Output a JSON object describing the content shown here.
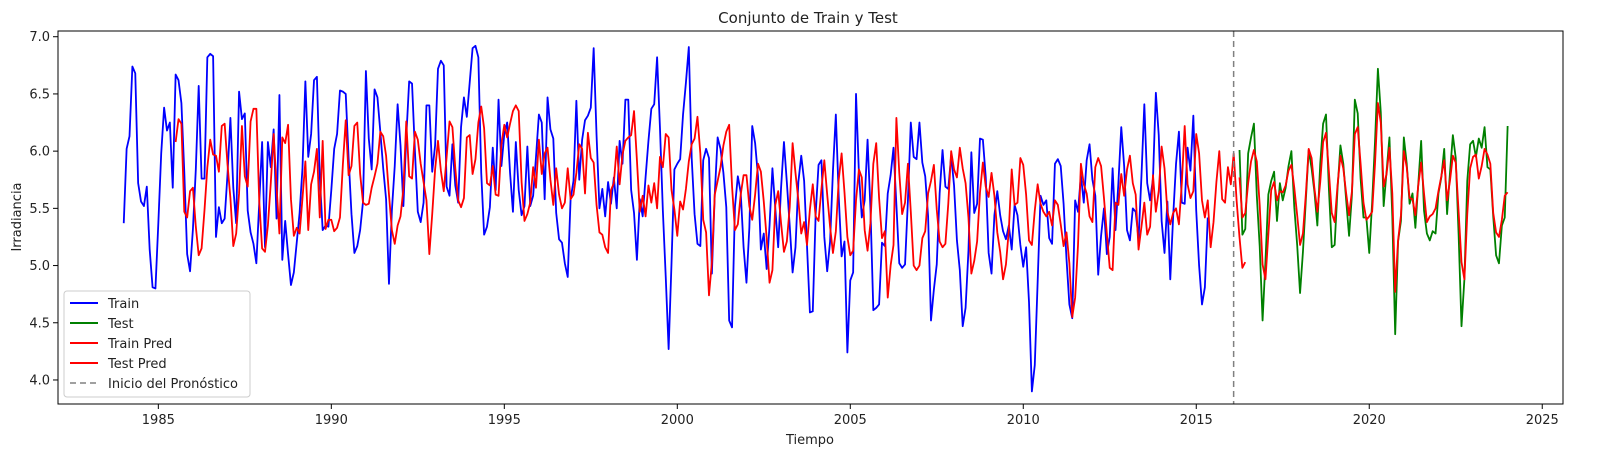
{
  "chart_data": {
    "type": "line",
    "title": "Conjunto de Train y Test",
    "xlabel": "Tiempo",
    "ylabel": "Irradiancia",
    "xlim": [
      1982.1,
      2025.6
    ],
    "ylim": [
      3.79,
      7.05
    ],
    "xticks": [
      1985,
      1990,
      1995,
      2000,
      2005,
      2010,
      2015,
      2020,
      2025
    ],
    "yticks": [
      4.0,
      4.5,
      5.0,
      5.5,
      6.0,
      6.5,
      7.0
    ],
    "grid": false,
    "legend_position": "lower-left",
    "vline": {
      "x": 2016.08,
      "label": "Inicio del Pronóstico",
      "color": "#808080"
    },
    "series": [
      {
        "name": "Train",
        "color": "#0000ff",
        "x_start": 1984.0,
        "x_step": 0.08333,
        "values": [
          5.37,
          6.02,
          6.13,
          6.74,
          6.68,
          5.72,
          5.56,
          5.52,
          5.69,
          5.14,
          4.81,
          4.8,
          5.37,
          5.98,
          6.38,
          6.18,
          6.25,
          5.68,
          6.67,
          6.62,
          6.42,
          5.82,
          5.1,
          4.95,
          5.32,
          5.84,
          6.57,
          5.76,
          5.76,
          6.82,
          6.85,
          6.83,
          5.25,
          5.51,
          5.37,
          5.41,
          5.8,
          6.29,
          5.68,
          5.37,
          6.52,
          6.28,
          6.33,
          5.48,
          5.29,
          5.19,
          5.02,
          5.55,
          6.08,
          5.16,
          6.08,
          5.86,
          6.19,
          5.41,
          6.49,
          5.05,
          5.39,
          5.1,
          4.83,
          4.94,
          5.2,
          5.46,
          5.85,
          6.61,
          5.95,
          6.15,
          6.62,
          6.65,
          5.78,
          5.31,
          5.35,
          5.34,
          5.66,
          6.02,
          6.15,
          6.53,
          6.52,
          6.5,
          5.94,
          5.45,
          5.11,
          5.17,
          5.31,
          5.56,
          6.7,
          6.11,
          5.84,
          6.54,
          6.47,
          6.17,
          5.85,
          5.58,
          4.84,
          5.48,
          5.87,
          6.41,
          6.05,
          5.52,
          6.12,
          6.61,
          6.59,
          6.0,
          5.47,
          5.38,
          5.55,
          6.4,
          6.4,
          5.82,
          6.05,
          6.72,
          6.79,
          6.75,
          5.69,
          5.61,
          6.06,
          5.7,
          5.55,
          6.21,
          6.47,
          6.3,
          6.6,
          6.9,
          6.92,
          6.82,
          5.81,
          5.27,
          5.34,
          5.51,
          6.03,
          5.66,
          6.45,
          5.87,
          6.15,
          6.25,
          5.81,
          5.47,
          6.08,
          5.66,
          5.44,
          5.52,
          6.04,
          5.52,
          5.61,
          5.95,
          6.32,
          6.25,
          5.58,
          6.47,
          6.19,
          6.11,
          5.46,
          5.23,
          5.2,
          5.02,
          4.9,
          5.58,
          5.74,
          6.44,
          5.75,
          6.1,
          6.27,
          6.31,
          6.38,
          6.9,
          6.14,
          5.5,
          5.67,
          5.43,
          5.73,
          5.54,
          5.77,
          5.5,
          6.09,
          5.89,
          6.45,
          6.45,
          5.66,
          5.46,
          5.05,
          5.58,
          5.43,
          5.77,
          6.09,
          6.37,
          6.41,
          6.82,
          6.2,
          5.48,
          4.9,
          4.27,
          5.02,
          5.84,
          5.89,
          5.93,
          6.32,
          6.6,
          6.91,
          5.94,
          5.45,
          5.19,
          5.17,
          5.92,
          6.02,
          5.94,
          4.93,
          5.62,
          6.12,
          6.02,
          5.81,
          5.51,
          4.52,
          4.46,
          5.51,
          5.78,
          5.64,
          5.16,
          4.85,
          5.33,
          6.22,
          6.07,
          5.78,
          5.14,
          5.28,
          4.97,
          5.35,
          5.85,
          5.5,
          5.16,
          5.68,
          6.08,
          5.73,
          5.35,
          4.94,
          5.16,
          5.73,
          5.96,
          5.74,
          5.17,
          4.59,
          4.6,
          5.45,
          5.88,
          5.92,
          5.25,
          4.95,
          5.21,
          5.83,
          6.32,
          5.6,
          5.08,
          5.21,
          4.24,
          4.87,
          4.94,
          6.5,
          5.81,
          5.42,
          5.57,
          6.1,
          5.5,
          4.61,
          4.63,
          4.66,
          5.2,
          5.17,
          5.63,
          5.79,
          6.03,
          5.53,
          5.02,
          4.98,
          5.01,
          5.57,
          6.25,
          5.95,
          5.93,
          6.25,
          5.9,
          5.78,
          5.43,
          4.52,
          4.79,
          5.01,
          5.63,
          6.01,
          5.69,
          5.67,
          5.96,
          5.7,
          5.22,
          4.96,
          4.47,
          4.63,
          5.13,
          5.99,
          5.46,
          5.54,
          6.11,
          6.1,
          5.77,
          5.11,
          4.93,
          5.44,
          5.65,
          5.44,
          5.3,
          5.23,
          5.35,
          5.14,
          5.53,
          5.44,
          5.18,
          4.99,
          5.16,
          4.68,
          3.9,
          4.13,
          4.86,
          5.61,
          5.53,
          5.57,
          5.24,
          5.19,
          5.89,
          5.93,
          5.87,
          5.54,
          5.06,
          4.66,
          4.54,
          5.57,
          5.47,
          5.79,
          5.55,
          5.92,
          6.06,
          5.75,
          5.61,
          4.92,
          5.26,
          5.5,
          5.1,
          5.25,
          5.85,
          5.31,
          5.72,
          6.21,
          5.87,
          5.31,
          5.22,
          5.5,
          5.47,
          5.23,
          5.78,
          6.41,
          5.72,
          5.57,
          5.76,
          6.51,
          6.14,
          5.39,
          5.11,
          5.56,
          4.88,
          5.43,
          5.89,
          6.17,
          5.55,
          5.54,
          6.03,
          5.83,
          6.31,
          5.48,
          5.0,
          4.66,
          4.81,
          5.42
        ]
      },
      {
        "name": "Test",
        "color": "#008000",
        "x_start": 2016.25,
        "x_step": 0.08333,
        "values": [
          6.01,
          5.27,
          5.32,
          5.98,
          6.12,
          6.24,
          5.61,
          5.17,
          4.52,
          5.04,
          5.62,
          5.74,
          5.82,
          5.39,
          5.72,
          5.57,
          5.68,
          5.87,
          6.0,
          5.51,
          5.18,
          4.76,
          5.12,
          5.57,
          6.01,
          5.85,
          5.64,
          5.35,
          5.89,
          6.24,
          6.32,
          5.67,
          5.16,
          5.18,
          5.67,
          6.05,
          5.89,
          5.57,
          5.26,
          5.62,
          6.45,
          6.33,
          5.76,
          5.42,
          5.42,
          5.11,
          5.55,
          6.08,
          6.72,
          6.34,
          5.52,
          5.82,
          6.12,
          5.43,
          4.4,
          5.21,
          5.39,
          6.12,
          5.89,
          5.54,
          5.63,
          5.33,
          5.71,
          6.09,
          5.48,
          5.28,
          5.22,
          5.3,
          5.28,
          5.63,
          5.77,
          6.02,
          5.45,
          5.81,
          6.14,
          5.94,
          5.27,
          4.47,
          4.88,
          5.74,
          6.06,
          6.09,
          5.95,
          6.11,
          6.03,
          6.21,
          5.86,
          5.84,
          5.43,
          5.09,
          5.02,
          5.35,
          5.42,
          6.22
        ]
      },
      {
        "name": "Train Pred",
        "color": "#ff0000",
        "x_start": 1985.5,
        "x_step": 0.08333,
        "values": [
          6.08,
          6.28,
          6.24,
          5.47,
          5.42,
          5.65,
          5.68,
          5.34,
          5.09,
          5.15,
          5.48,
          5.86,
          6.1,
          5.97,
          5.96,
          5.82,
          6.22,
          6.24,
          5.88,
          5.59,
          5.17,
          5.28,
          5.63,
          6.22,
          5.78,
          5.69,
          6.26,
          6.37,
          6.37,
          5.56,
          5.15,
          5.12,
          5.35,
          5.72,
          6.15,
          5.69,
          5.28,
          6.12,
          6.07,
          6.23,
          5.58,
          5.26,
          5.33,
          5.28,
          5.59,
          5.91,
          5.31,
          5.71,
          5.82,
          6.02,
          5.42,
          6.09,
          5.32,
          5.4,
          5.4,
          5.3,
          5.33,
          5.42,
          5.88,
          6.27,
          5.79,
          5.87,
          6.22,
          6.25,
          5.8,
          5.55,
          5.53,
          5.54,
          5.68,
          5.78,
          5.89,
          6.17,
          6.13,
          5.96,
          5.62,
          5.31,
          5.19,
          5.35,
          5.43,
          5.67,
          6.26,
          5.78,
          5.76,
          6.17,
          6.1,
          5.89,
          5.73,
          5.57,
          5.1,
          5.45,
          5.84,
          6.09,
          5.83,
          5.65,
          5.95,
          6.26,
          6.21,
          5.85,
          5.57,
          5.51,
          5.59,
          6.12,
          6.14,
          5.8,
          5.93,
          6.25,
          6.39,
          6.2,
          5.72,
          5.7,
          5.87,
          5.62,
          5.61,
          6.06,
          6.23,
          6.12,
          6.24,
          6.35,
          6.4,
          6.35,
          5.73,
          5.39,
          5.45,
          5.55,
          5.86,
          5.68,
          6.1,
          5.8,
          5.98,
          6.03,
          5.75,
          5.53,
          5.85,
          5.62,
          5.5,
          5.55,
          5.85,
          5.58,
          5.62,
          5.81,
          6.06,
          6.02,
          5.63,
          6.16,
          5.94,
          5.9,
          5.53,
          5.29,
          5.27,
          5.16,
          5.11,
          5.66,
          5.72,
          6.04,
          5.71,
          5.97,
          6.09,
          6.12,
          6.14,
          6.35,
          5.92,
          5.47,
          5.61,
          5.43,
          5.7,
          5.55,
          5.72,
          5.5,
          5.95,
          5.86,
          6.15,
          6.12,
          5.66,
          5.49,
          5.26,
          5.56,
          5.49,
          5.67,
          5.91,
          6.06,
          6.11,
          6.3,
          5.98,
          5.4,
          5.29,
          4.74,
          5.03,
          5.62,
          5.74,
          5.86,
          6.05,
          6.17,
          6.23,
          5.69,
          5.31,
          5.36,
          5.62,
          5.79,
          5.79,
          5.52,
          5.4,
          5.62,
          5.89,
          5.82,
          5.56,
          5.24,
          4.85,
          4.96,
          5.53,
          5.65,
          5.37,
          5.12,
          5.21,
          5.51,
          6.07,
          5.81,
          5.57,
          5.28,
          5.38,
          5.18,
          5.49,
          5.71,
          5.43,
          5.39,
          5.67,
          5.92,
          5.62,
          5.34,
          5.11,
          5.3,
          5.75,
          5.98,
          5.64,
          5.25,
          5.09,
          5.13,
          5.57,
          5.84,
          5.77,
          5.31,
          5.13,
          5.37,
          5.89,
          6.07,
          5.59,
          5.24,
          5.3,
          4.72,
          5.0,
          5.18,
          6.29,
          5.81,
          5.45,
          5.55,
          5.89,
          5.47,
          5.0,
          4.96,
          5.0,
          5.24,
          5.3,
          5.63,
          5.74,
          5.88,
          5.49,
          5.21,
          5.16,
          5.19,
          5.54,
          6.0,
          5.84,
          5.77,
          6.03,
          5.85,
          5.72,
          5.42,
          4.93,
          5.04,
          5.21,
          5.64,
          5.9,
          5.69,
          5.6,
          5.81,
          5.61,
          5.29,
          5.12,
          4.88,
          5.01,
          5.31,
          5.84,
          5.53,
          5.55,
          5.94,
          5.88,
          5.62,
          5.22,
          5.18,
          5.48,
          5.71,
          5.54,
          5.47,
          5.43,
          5.47,
          5.35,
          5.57,
          5.53,
          5.36,
          5.17,
          5.29,
          5.02,
          4.55,
          4.72,
          5.18,
          5.89,
          5.71,
          5.63,
          5.43,
          5.38,
          5.86,
          5.94,
          5.87,
          5.59,
          5.28,
          4.98,
          4.96,
          5.55,
          5.53,
          5.8,
          5.61,
          5.84,
          5.96,
          5.72,
          5.62,
          5.14,
          5.34,
          5.55,
          5.27,
          5.34,
          5.79,
          5.47,
          5.65,
          6.04,
          5.85,
          5.47,
          5.36,
          5.46,
          5.5,
          5.36,
          5.72,
          6.22,
          5.71,
          5.59,
          5.65,
          6.15,
          5.98,
          5.57,
          5.42,
          5.57,
          5.16,
          5.38,
          5.73,
          6.0,
          5.58,
          5.55,
          5.86,
          5.71,
          5.98,
          5.57,
          5.25,
          4.98,
          5.03
        ]
      },
      {
        "name": "Test Pred",
        "color": "#ff0000",
        "x_start": 2016.25,
        "x_step": 0.08333,
        "values": [
          5.77,
          5.42,
          5.46,
          5.72,
          5.91,
          6.01,
          5.91,
          5.53,
          5.01,
          4.88,
          5.27,
          5.66,
          5.73,
          5.57,
          5.65,
          5.64,
          5.7,
          5.83,
          5.88,
          5.68,
          5.44,
          5.18,
          5.28,
          5.62,
          6.02,
          5.94,
          5.67,
          5.47,
          5.73,
          6.08,
          6.16,
          5.82,
          5.46,
          5.38,
          5.7,
          5.96,
          5.85,
          5.63,
          5.44,
          5.65,
          6.15,
          6.21,
          5.89,
          5.55,
          5.4,
          5.43,
          5.47,
          5.89,
          6.42,
          6.25,
          5.69,
          5.8,
          6.03,
          5.63,
          4.77,
          5.22,
          5.44,
          6.0,
          5.86,
          5.59,
          5.58,
          5.44,
          5.7,
          5.9,
          5.63,
          5.38,
          5.43,
          5.45,
          5.5,
          5.65,
          5.78,
          5.92,
          5.57,
          5.74,
          5.96,
          5.9,
          5.47,
          5.03,
          4.88,
          5.45,
          5.85,
          5.95,
          5.97,
          5.76,
          5.87,
          6.02,
          5.97,
          5.89,
          5.46,
          5.29,
          5.25,
          5.4,
          5.61,
          5.64
        ]
      }
    ]
  }
}
